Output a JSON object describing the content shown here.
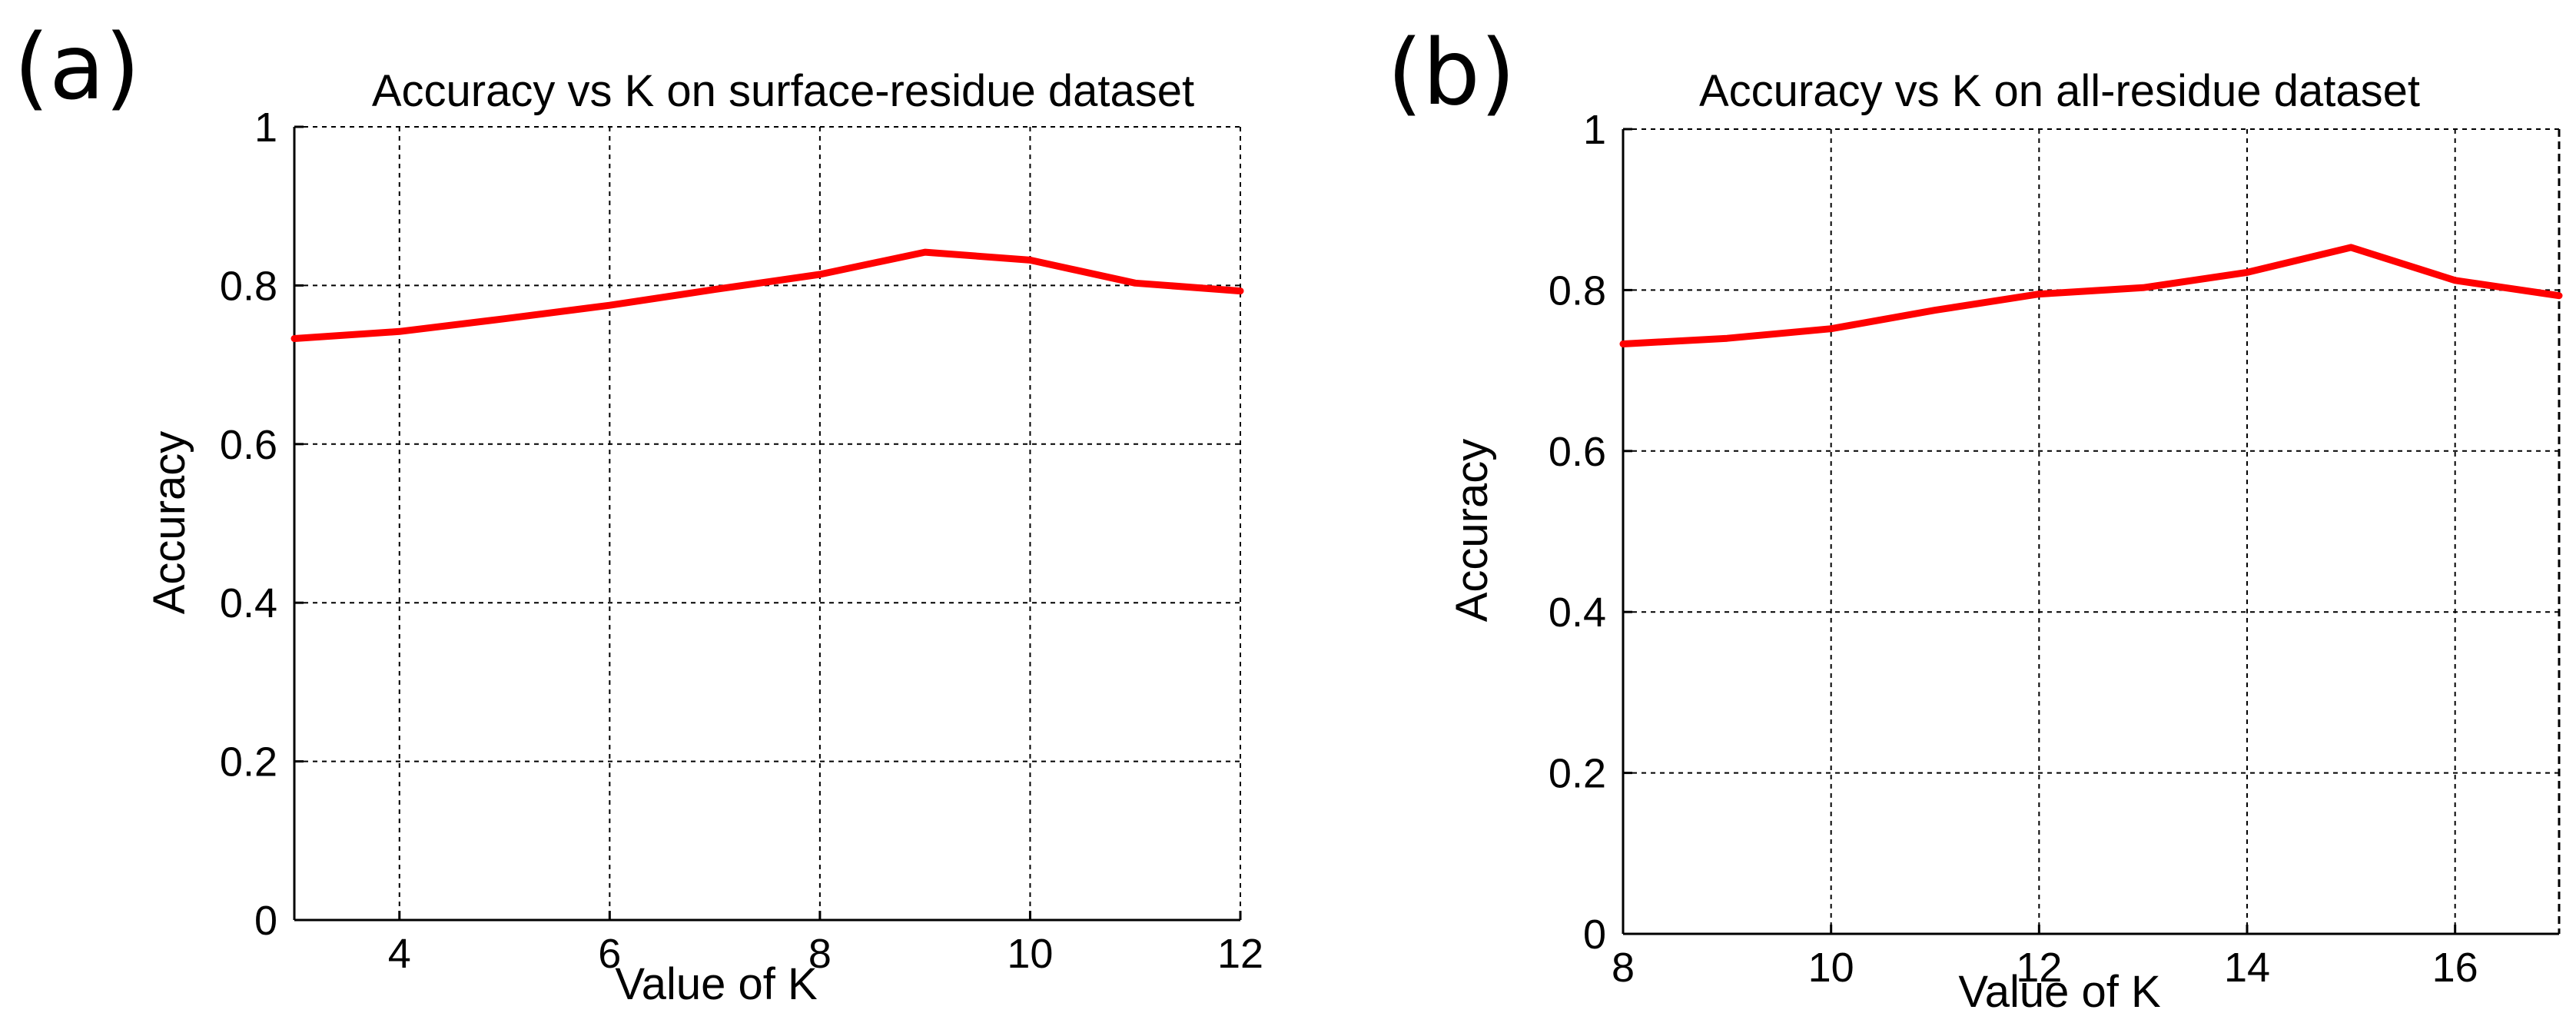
{
  "chart_data": [
    {
      "panel_label": "(a)",
      "type": "line",
      "title": "Accuracy vs K on surface-residue dataset",
      "xlabel": "Value of K",
      "ylabel": "Accuracy",
      "xlim": [
        3,
        12
      ],
      "ylim": [
        0,
        1
      ],
      "xticks": [
        4,
        6,
        8,
        10,
        12
      ],
      "yticks": [
        0,
        0.2,
        0.4,
        0.6,
        0.8,
        1
      ],
      "xtick_labels": [
        "4",
        "6",
        "8",
        "10",
        "12"
      ],
      "ytick_labels": [
        "0",
        "0.2",
        "0.4",
        "0.6",
        "0.8",
        "1"
      ],
      "grid": true,
      "series": [
        {
          "name": "Accuracy",
          "color": "#ff0000",
          "x": [
            3,
            4,
            5,
            6,
            7,
            8,
            9,
            10,
            11,
            12
          ],
          "y": [
            0.733,
            0.742,
            0.758,
            0.775,
            0.795,
            0.814,
            0.842,
            0.832,
            0.803,
            0.793
          ]
        }
      ]
    },
    {
      "panel_label": "(b)",
      "type": "line",
      "title": "Accuracy vs K on all-residue dataset",
      "xlabel": "Value of K",
      "ylabel": "Accuracy",
      "xlim": [
        8,
        17
      ],
      "ylim": [
        0,
        1
      ],
      "xticks": [
        8,
        10,
        12,
        14,
        16
      ],
      "yticks": [
        0,
        0.2,
        0.4,
        0.6,
        0.8,
        1
      ],
      "xtick_labels": [
        "8",
        "10",
        "12",
        "14",
        "16"
      ],
      "ytick_labels": [
        "0",
        "0.2",
        "0.4",
        "0.6",
        "0.8",
        "1"
      ],
      "grid": true,
      "series": [
        {
          "name": "Accuracy",
          "color": "#ff0000",
          "x": [
            8,
            9,
            10,
            11,
            12,
            13,
            14,
            15,
            16,
            17
          ],
          "y": [
            0.733,
            0.74,
            0.752,
            0.775,
            0.795,
            0.803,
            0.822,
            0.853,
            0.812,
            0.793
          ]
        }
      ]
    }
  ]
}
